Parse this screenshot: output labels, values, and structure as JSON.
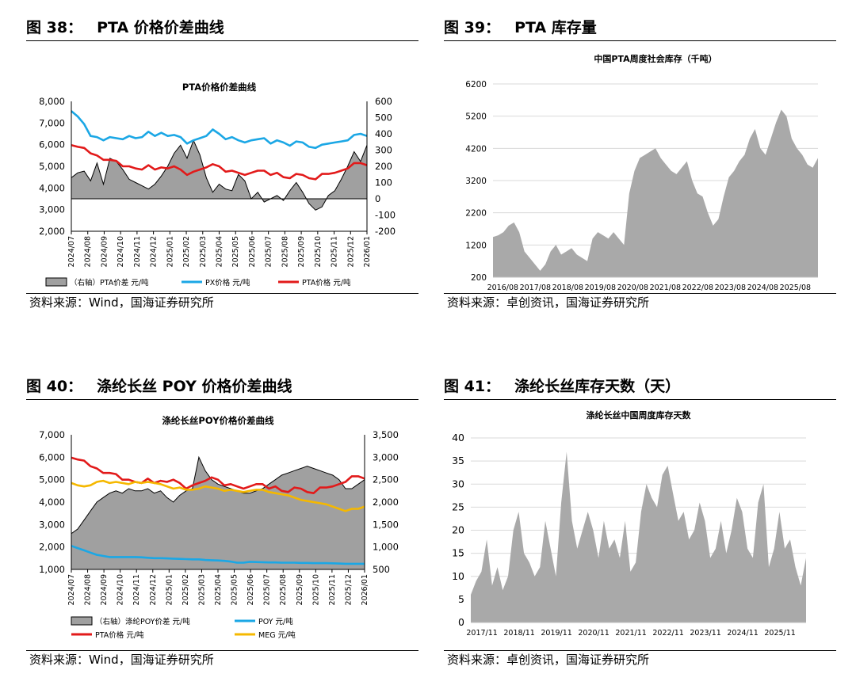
{
  "fig38": {
    "number": "图 38：",
    "title": "PTA 价格价差曲线",
    "source": "资料来源：Wind，国海证券研究所",
    "chart_data": {
      "type": "line",
      "title": "PTA价格价差曲线",
      "x_ticks": [
        "2024/07",
        "2024/08",
        "2024/09",
        "2024/10",
        "2024/11",
        "2024/12",
        "2025/01",
        "2025/02",
        "2025/03",
        "2025/04",
        "2025/05",
        "2025/06",
        "2025/07",
        "2025/08",
        "2025/09",
        "2025/10",
        "2025/11",
        "2025/12",
        "2026/01"
      ],
      "y_left": {
        "range": [
          2000,
          8000
        ],
        "ticks": [
          "2,000",
          "3,000",
          "4,000",
          "5,000",
          "6,000",
          "7,000",
          "8,000"
        ]
      },
      "y_right": {
        "range": [
          -200,
          600
        ],
        "ticks": [
          "-200",
          "-100",
          "0",
          "100",
          "200",
          "300",
          "400",
          "500",
          "600"
        ]
      },
      "legend": [
        "（右轴）PTA价差  元/吨",
        "PX价格  元/吨",
        "PTA价格  元/吨"
      ],
      "colors": {
        "spread": "#a0a0a0",
        "px": "#1ba7e5",
        "pta": "#e21a1a"
      },
      "series": [
        {
          "name": "（右轴）PTA价差  元/吨",
          "axis": "right",
          "kind": "area",
          "values": [
            130,
            160,
            170,
            110,
            220,
            90,
            250,
            230,
            180,
            120,
            100,
            80,
            60,
            90,
            140,
            200,
            280,
            330,
            250,
            360,
            270,
            130,
            40,
            90,
            60,
            50,
            150,
            110,
            0,
            40,
            -20,
            0,
            20,
            -10,
            50,
            100,
            40,
            -30,
            -70,
            -50,
            20,
            50,
            120,
            200,
            290,
            230,
            330
          ]
        },
        {
          "name": "PX价格  元/吨",
          "axis": "left",
          "kind": "line",
          "values": [
            7550,
            7300,
            6950,
            6400,
            6350,
            6200,
            6350,
            6300,
            6250,
            6400,
            6300,
            6350,
            6600,
            6400,
            6550,
            6400,
            6450,
            6350,
            6050,
            6200,
            6300,
            6400,
            6700,
            6500,
            6250,
            6350,
            6200,
            6100,
            6200,
            6250,
            6300,
            6050,
            6200,
            6100,
            5950,
            6150,
            6100,
            5900,
            5850,
            6000,
            6050,
            6100,
            6150,
            6200,
            6450,
            6500,
            6400
          ]
        },
        {
          "name": "PTA价格  元/吨",
          "axis": "left",
          "kind": "line",
          "values": [
            5980,
            5900,
            5850,
            5600,
            5500,
            5300,
            5300,
            5250,
            5000,
            5000,
            4900,
            4850,
            5050,
            4850,
            4950,
            4900,
            5000,
            4850,
            4600,
            4750,
            4850,
            4950,
            5100,
            5000,
            4750,
            4800,
            4700,
            4600,
            4700,
            4800,
            4800,
            4600,
            4700,
            4500,
            4450,
            4650,
            4600,
            4450,
            4400,
            4650,
            4650,
            4700,
            4800,
            4900,
            5150,
            5150,
            5050
          ]
        }
      ]
    }
  },
  "fig39": {
    "number": "图 39：",
    "title": "PTA 库存量",
    "source": "资料来源：卓创资讯，国海证券研究所",
    "chart_data": {
      "type": "area",
      "title": "中国PTA周度社会库存（千吨）",
      "x_ticks": [
        "2016/08",
        "2017/08",
        "2018/08",
        "2019/08",
        "2020/08",
        "2021/08",
        "2022/08",
        "2023/08",
        "2024/08",
        "2025/08"
      ],
      "y": {
        "range": [
          200,
          6200
        ],
        "ticks": [
          "200",
          "1200",
          "2200",
          "3200",
          "4200",
          "5200",
          "6200"
        ]
      },
      "color": "#a9a9a9",
      "values": [
        1450,
        1500,
        1600,
        1800,
        1900,
        1600,
        1000,
        800,
        600,
        400,
        600,
        1000,
        1200,
        900,
        1000,
        1100,
        900,
        800,
        700,
        1400,
        1600,
        1500,
        1400,
        1600,
        1400,
        1200,
        2800,
        3500,
        3900,
        4000,
        4100,
        4200,
        3900,
        3700,
        3500,
        3400,
        3600,
        3800,
        3200,
        2800,
        2700,
        2200,
        1800,
        2000,
        2700,
        3300,
        3500,
        3800,
        4000,
        4500,
        4800,
        4200,
        4000,
        4500,
        5000,
        5400,
        5200,
        4500,
        4200,
        4000,
        3700,
        3600,
        3900
      ]
    }
  },
  "fig40": {
    "number": "图 40：",
    "title": "涤纶长丝 POY 价格价差曲线",
    "source": "资料来源：Wind，国海证券研究所",
    "chart_data": {
      "type": "line",
      "title": "涤纶长丝POY价格价差曲线",
      "x_ticks": [
        "2024/07",
        "2024/08",
        "2024/09",
        "2024/10",
        "2024/11",
        "2024/12",
        "2025/01",
        "2025/02",
        "2025/03",
        "2025/04",
        "2025/05",
        "2025/06",
        "2025/07",
        "2025/08",
        "2025/09",
        "2025/10",
        "2025/11",
        "2025/12",
        "2026/01"
      ],
      "y_left": {
        "range": [
          1000,
          7000
        ],
        "ticks": [
          "1,000",
          "2,000",
          "3,000",
          "4,000",
          "5,000",
          "6,000",
          "7,000"
        ]
      },
      "y_right": {
        "range": [
          500,
          3500
        ],
        "ticks": [
          "500",
          "1,000",
          "1,500",
          "2,000",
          "2,500",
          "3,000",
          "3,500"
        ]
      },
      "legend": [
        "（右轴）涤纶POY价差  元/吨",
        "POY  元/吨",
        "PTA价格  元/吨",
        "MEG  元/吨"
      ],
      "colors": {
        "spread": "#a0a0a0",
        "poy": "#1ba7e5",
        "pta": "#e21a1a",
        "meg": "#f5b800"
      },
      "series": [
        {
          "name": "（右轴）涤纶POY价差  元/吨",
          "axis": "right",
          "kind": "area",
          "values": [
            1300,
            1400,
            1600,
            1800,
            2000,
            2100,
            2200,
            2250,
            2200,
            2300,
            2250,
            2250,
            2300,
            2200,
            2250,
            2100,
            2000,
            2150,
            2250,
            2300,
            3000,
            2700,
            2500,
            2400,
            2350,
            2300,
            2250,
            2200,
            2200,
            2250,
            2300,
            2400,
            2500,
            2600,
            2650,
            2700,
            2750,
            2800,
            2750,
            2700,
            2650,
            2600,
            2500,
            2300,
            2300,
            2400,
            2500
          ]
        },
        {
          "name": "POY  元/吨",
          "axis": "left",
          "kind": "line",
          "values": [
            2050,
            1950,
            1850,
            1750,
            1650,
            1600,
            1550,
            1550,
            1550,
            1550,
            1550,
            1540,
            1520,
            1500,
            1500,
            1490,
            1480,
            1470,
            1460,
            1450,
            1450,
            1420,
            1410,
            1400,
            1380,
            1350,
            1300,
            1300,
            1340,
            1330,
            1320,
            1310,
            1310,
            1300,
            1300,
            1300,
            1290,
            1290,
            1280,
            1280,
            1280,
            1270,
            1260,
            1250,
            1250,
            1250,
            1250
          ]
        },
        {
          "name": "PTA价格  元/吨",
          "axis": "left",
          "kind": "line",
          "values": [
            5980,
            5900,
            5850,
            5600,
            5500,
            5300,
            5300,
            5250,
            5000,
            5000,
            4900,
            4850,
            5050,
            4850,
            4950,
            4900,
            5000,
            4850,
            4600,
            4750,
            4850,
            4950,
            5100,
            5000,
            4750,
            4800,
            4700,
            4600,
            4700,
            4800,
            4800,
            4600,
            4700,
            4500,
            4450,
            4650,
            4600,
            4450,
            4400,
            4650,
            4650,
            4700,
            4800,
            4900,
            5150,
            5150,
            5050
          ]
        },
        {
          "name": "MEG  元/吨",
          "axis": "left",
          "kind": "line",
          "values": [
            4850,
            4750,
            4700,
            4750,
            4900,
            4950,
            4850,
            4900,
            4850,
            4800,
            4900,
            4850,
            4900,
            4850,
            4800,
            4700,
            4600,
            4650,
            4550,
            4550,
            4600,
            4700,
            4650,
            4600,
            4500,
            4550,
            4500,
            4450,
            4500,
            4550,
            4550,
            4450,
            4400,
            4350,
            4300,
            4200,
            4100,
            4050,
            4000,
            3950,
            3900,
            3800,
            3700,
            3600,
            3700,
            3700,
            3800
          ]
        }
      ]
    }
  },
  "fig41": {
    "number": "图 41：",
    "title": "涤纶长丝库存天数（天）",
    "source": "资料来源：卓创资讯，国海证券研究所",
    "chart_data": {
      "type": "area",
      "title": "涤纶长丝中国周度库存天数",
      "x_ticks": [
        "2017/11",
        "2018/11",
        "2019/11",
        "2020/11",
        "2021/11",
        "2022/11",
        "2023/11",
        "2024/11",
        "2025/11"
      ],
      "y": {
        "range": [
          0,
          40
        ],
        "ticks": [
          "0",
          "5",
          "10",
          "15",
          "20",
          "25",
          "30",
          "35",
          "40"
        ]
      },
      "color": "#a9a9a9",
      "values": [
        6,
        9,
        11,
        18,
        8,
        12,
        7,
        10,
        20,
        24,
        15,
        13,
        10,
        12,
        22,
        16,
        10,
        26,
        37,
        22,
        16,
        20,
        24,
        20,
        14,
        22,
        16,
        18,
        14,
        22,
        11,
        13,
        24,
        30,
        27,
        25,
        32,
        34,
        28,
        22,
        24,
        18,
        20,
        26,
        22,
        14,
        16,
        22,
        15,
        20,
        27,
        24,
        16,
        14,
        26,
        30,
        12,
        16,
        24,
        16,
        18,
        12,
        8,
        14
      ]
    }
  }
}
